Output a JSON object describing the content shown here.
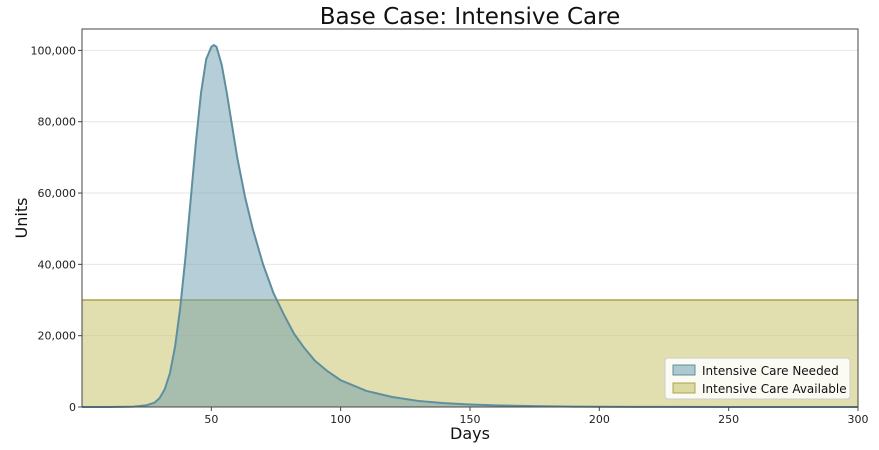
{
  "chart_data": {
    "type": "area",
    "title": "Base Case: Intensive Care",
    "xlabel": "Days",
    "ylabel": "Units",
    "xlim": [
      0,
      300
    ],
    "ylim": [
      0,
      106000
    ],
    "x_ticks": [
      50,
      100,
      150,
      200,
      250,
      300
    ],
    "y_ticks": [
      0,
      20000,
      40000,
      60000,
      80000,
      100000
    ],
    "y_tick_labels": [
      "0",
      "20,000",
      "40,000",
      "60,000",
      "80,000",
      "100,000"
    ],
    "grid": "horizontal",
    "legend_position": "lower-right",
    "series": [
      {
        "name": "Intensive Care Needed",
        "color": "#6d9eb0",
        "x": [
          0,
          10,
          20,
          25,
          28,
          30,
          32,
          34,
          36,
          38,
          40,
          42,
          44,
          46,
          48,
          50,
          51,
          52,
          54,
          56,
          58,
          60,
          63,
          66,
          70,
          74,
          78,
          82,
          86,
          90,
          95,
          100,
          110,
          120,
          130,
          140,
          150,
          160,
          175,
          190,
          200,
          225,
          250,
          275,
          300
        ],
        "y": [
          0,
          0,
          100,
          500,
          1200,
          2500,
          5000,
          9500,
          17000,
          28000,
          42000,
          58000,
          74000,
          88000,
          97500,
          101000,
          101500,
          101000,
          96000,
          88000,
          79000,
          70000,
          59000,
          50000,
          40000,
          32000,
          26000,
          20500,
          16500,
          13000,
          10000,
          7500,
          4500,
          2800,
          1700,
          1100,
          700,
          450,
          250,
          120,
          80,
          30,
          10,
          5,
          0
        ]
      },
      {
        "name": "Intensive Care Available",
        "color": "#c8c46d",
        "x": [
          0,
          300
        ],
        "y": [
          30000,
          30000
        ]
      }
    ]
  }
}
